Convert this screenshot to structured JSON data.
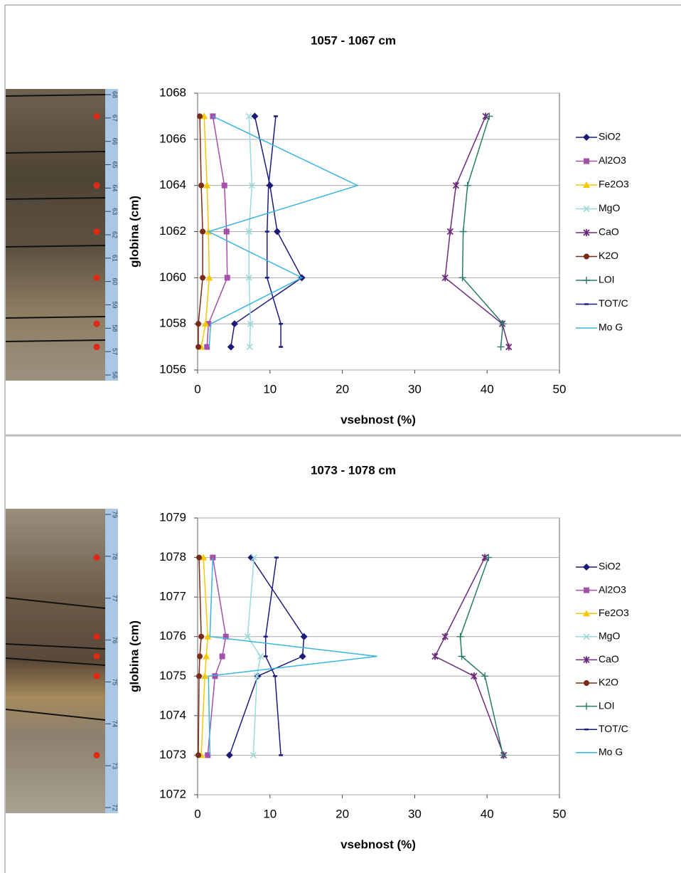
{
  "chart_data": [
    {
      "type": "line",
      "title": "1057 - 1067 cm",
      "xlabel": "vsebnost (%)",
      "ylabel": "globina (cm)",
      "y": [
        1067,
        1064,
        1062,
        1060,
        1058,
        1057
      ],
      "xlim": [
        0,
        50
      ],
      "xticks": [
        0,
        10,
        20,
        30,
        40,
        50
      ],
      "ylim": [
        1056,
        1068
      ],
      "yticks": [
        1056,
        1058,
        1060,
        1062,
        1064,
        1066,
        1068
      ],
      "grid": true,
      "legend": "right",
      "series": [
        {
          "name": "SiO2",
          "color": "#1c1c78",
          "marker": "diamond",
          "values": [
            7.9,
            10.0,
            11.0,
            14.4,
            5.1,
            4.6
          ]
        },
        {
          "name": "Al2O3",
          "color": "#a450a8",
          "marker": "square",
          "values": [
            2.1,
            3.7,
            4.0,
            4.1,
            1.5,
            1.3
          ]
        },
        {
          "name": "Fe2O3",
          "color": "#f5c800",
          "marker": "triangle",
          "values": [
            0.9,
            1.3,
            1.5,
            1.6,
            1.1,
            0.5
          ]
        },
        {
          "name": "MgO",
          "color": "#9adada",
          "marker": "x",
          "values": [
            7.1,
            7.5,
            7.1,
            7.1,
            7.3,
            7.2
          ]
        },
        {
          "name": "CaO",
          "color": "#6b2a7c",
          "marker": "star",
          "values": [
            39.8,
            35.7,
            34.9,
            34.2,
            42.1,
            43.0
          ]
        },
        {
          "name": "K2O",
          "color": "#7a2a18",
          "marker": "circle",
          "values": [
            0.3,
            0.5,
            0.7,
            0.7,
            0.1,
            0.1
          ]
        },
        {
          "name": "LOI",
          "color": "#2a7a68",
          "marker": "plus",
          "values": [
            40.3,
            37.3,
            36.7,
            36.6,
            42.2,
            41.9
          ]
        },
        {
          "name": "TOT/C",
          "color": "#1a1a80",
          "marker": "dash",
          "values": [
            10.8,
            9.8,
            9.6,
            9.6,
            11.5,
            11.5
          ]
        },
        {
          "name": "Mo G",
          "color": "#3ab4e4",
          "marker": "none",
          "values": [
            2.1,
            22.1,
            1.5,
            14.4,
            1.8,
            1.6
          ]
        }
      ]
    },
    {
      "type": "line",
      "title": "1073 - 1078 cm",
      "xlabel": "vsebnost (%)",
      "ylabel": "globina (cm)",
      "y": [
        1078,
        1076,
        1075.5,
        1075,
        1073
      ],
      "xlim": [
        0,
        50
      ],
      "xticks": [
        0,
        10,
        20,
        30,
        40,
        50
      ],
      "ylim": [
        1072,
        1079
      ],
      "yticks": [
        1072,
        1073,
        1074,
        1075,
        1076,
        1077,
        1078,
        1079
      ],
      "grid": true,
      "legend": "right",
      "series": [
        {
          "name": "SiO2",
          "color": "#1c1c78",
          "marker": "diamond",
          "values": [
            7.4,
            14.7,
            14.5,
            8.3,
            4.4
          ]
        },
        {
          "name": "Al2O3",
          "color": "#a450a8",
          "marker": "square",
          "values": [
            2.1,
            3.9,
            3.4,
            2.4,
            1.4
          ]
        },
        {
          "name": "Fe2O3",
          "color": "#f5c800",
          "marker": "triangle",
          "values": [
            0.8,
            1.4,
            1.2,
            1.0,
            0.5
          ]
        },
        {
          "name": "MgO",
          "color": "#9adada",
          "marker": "x",
          "values": [
            7.8,
            6.9,
            8.7,
            8.2,
            7.7
          ]
        },
        {
          "name": "CaO",
          "color": "#6b2a7c",
          "marker": "star",
          "values": [
            39.7,
            34.2,
            32.8,
            38.2,
            42.3
          ]
        },
        {
          "name": "K2O",
          "color": "#7a2a18",
          "marker": "circle",
          "values": [
            0.2,
            0.5,
            0.3,
            0.2,
            0.1
          ]
        },
        {
          "name": "LOI",
          "color": "#2a7a68",
          "marker": "plus",
          "values": [
            40.2,
            36.3,
            36.5,
            39.7,
            42.2
          ]
        },
        {
          "name": "TOT/C",
          "color": "#1a1a80",
          "marker": "dash",
          "values": [
            10.9,
            9.4,
            9.4,
            10.7,
            11.5
          ]
        },
        {
          "name": "Mo G",
          "color": "#3ab4e4",
          "marker": "none",
          "values": [
            2.1,
            1.7,
            24.8,
            1.5,
            1.7
          ]
        }
      ]
    }
  ],
  "core_photos": [
    {
      "scale_labels": [
        56,
        57,
        58,
        59,
        60,
        61,
        62,
        63,
        64,
        65,
        66,
        67,
        68
      ]
    },
    {
      "scale_labels": [
        72,
        73,
        74,
        75,
        76,
        77,
        78,
        79
      ]
    }
  ]
}
